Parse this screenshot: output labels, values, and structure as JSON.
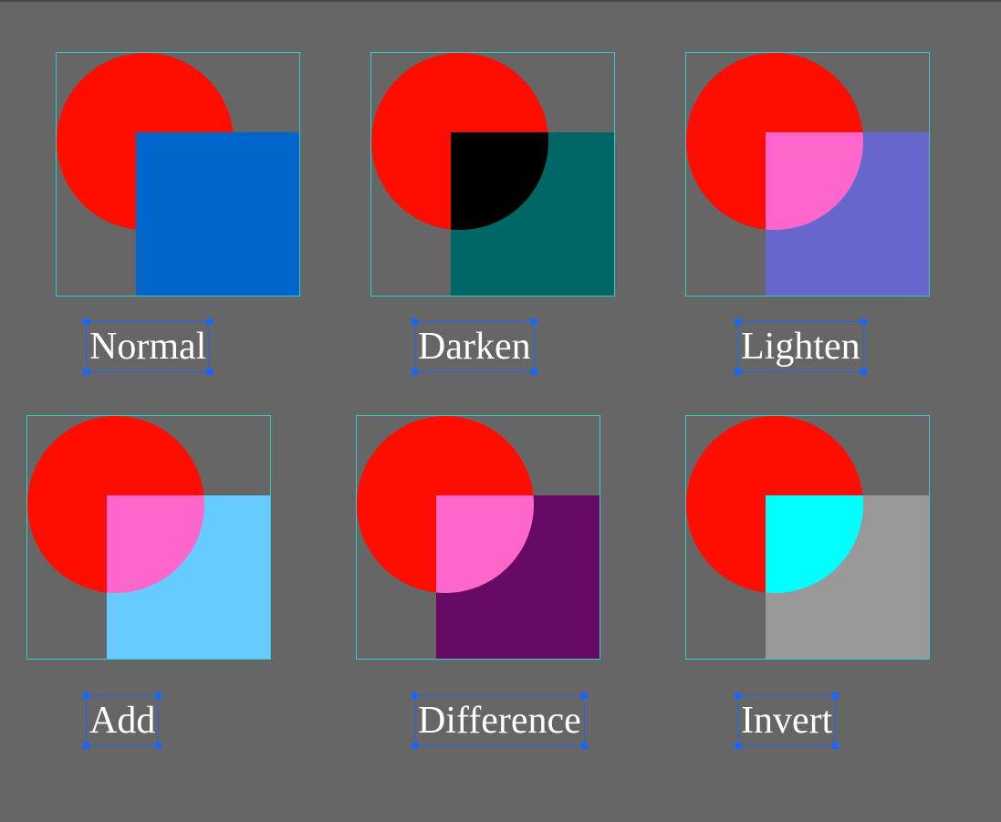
{
  "canvas": {
    "background_color": "#666666",
    "frame_color": "#33cccc",
    "selection_color": "#1a66ff",
    "label_color": "#ffffff"
  },
  "blends": [
    {
      "label": "Normal",
      "circle_color": "#ff0d00",
      "square_color": "#0066cc",
      "overlap_color": "#0066cc"
    },
    {
      "label": "Darken",
      "circle_color": "#ff0d00",
      "square_color": "#006666",
      "overlap_color": "#000000"
    },
    {
      "label": "Lighten",
      "circle_color": "#ff0d00",
      "square_color": "#6666cc",
      "overlap_color": "#ff66cc"
    },
    {
      "label": "Add",
      "circle_color": "#ff0d00",
      "square_color": "#66ccff",
      "overlap_color": "#ff66cc"
    },
    {
      "label": "Difference",
      "circle_color": "#ff0d00",
      "square_color": "#660a66",
      "overlap_color": "#ff66cc"
    },
    {
      "label": "Invert",
      "circle_color": "#ff0d00",
      "square_color": "#999999",
      "overlap_color": "#00ffff"
    }
  ]
}
